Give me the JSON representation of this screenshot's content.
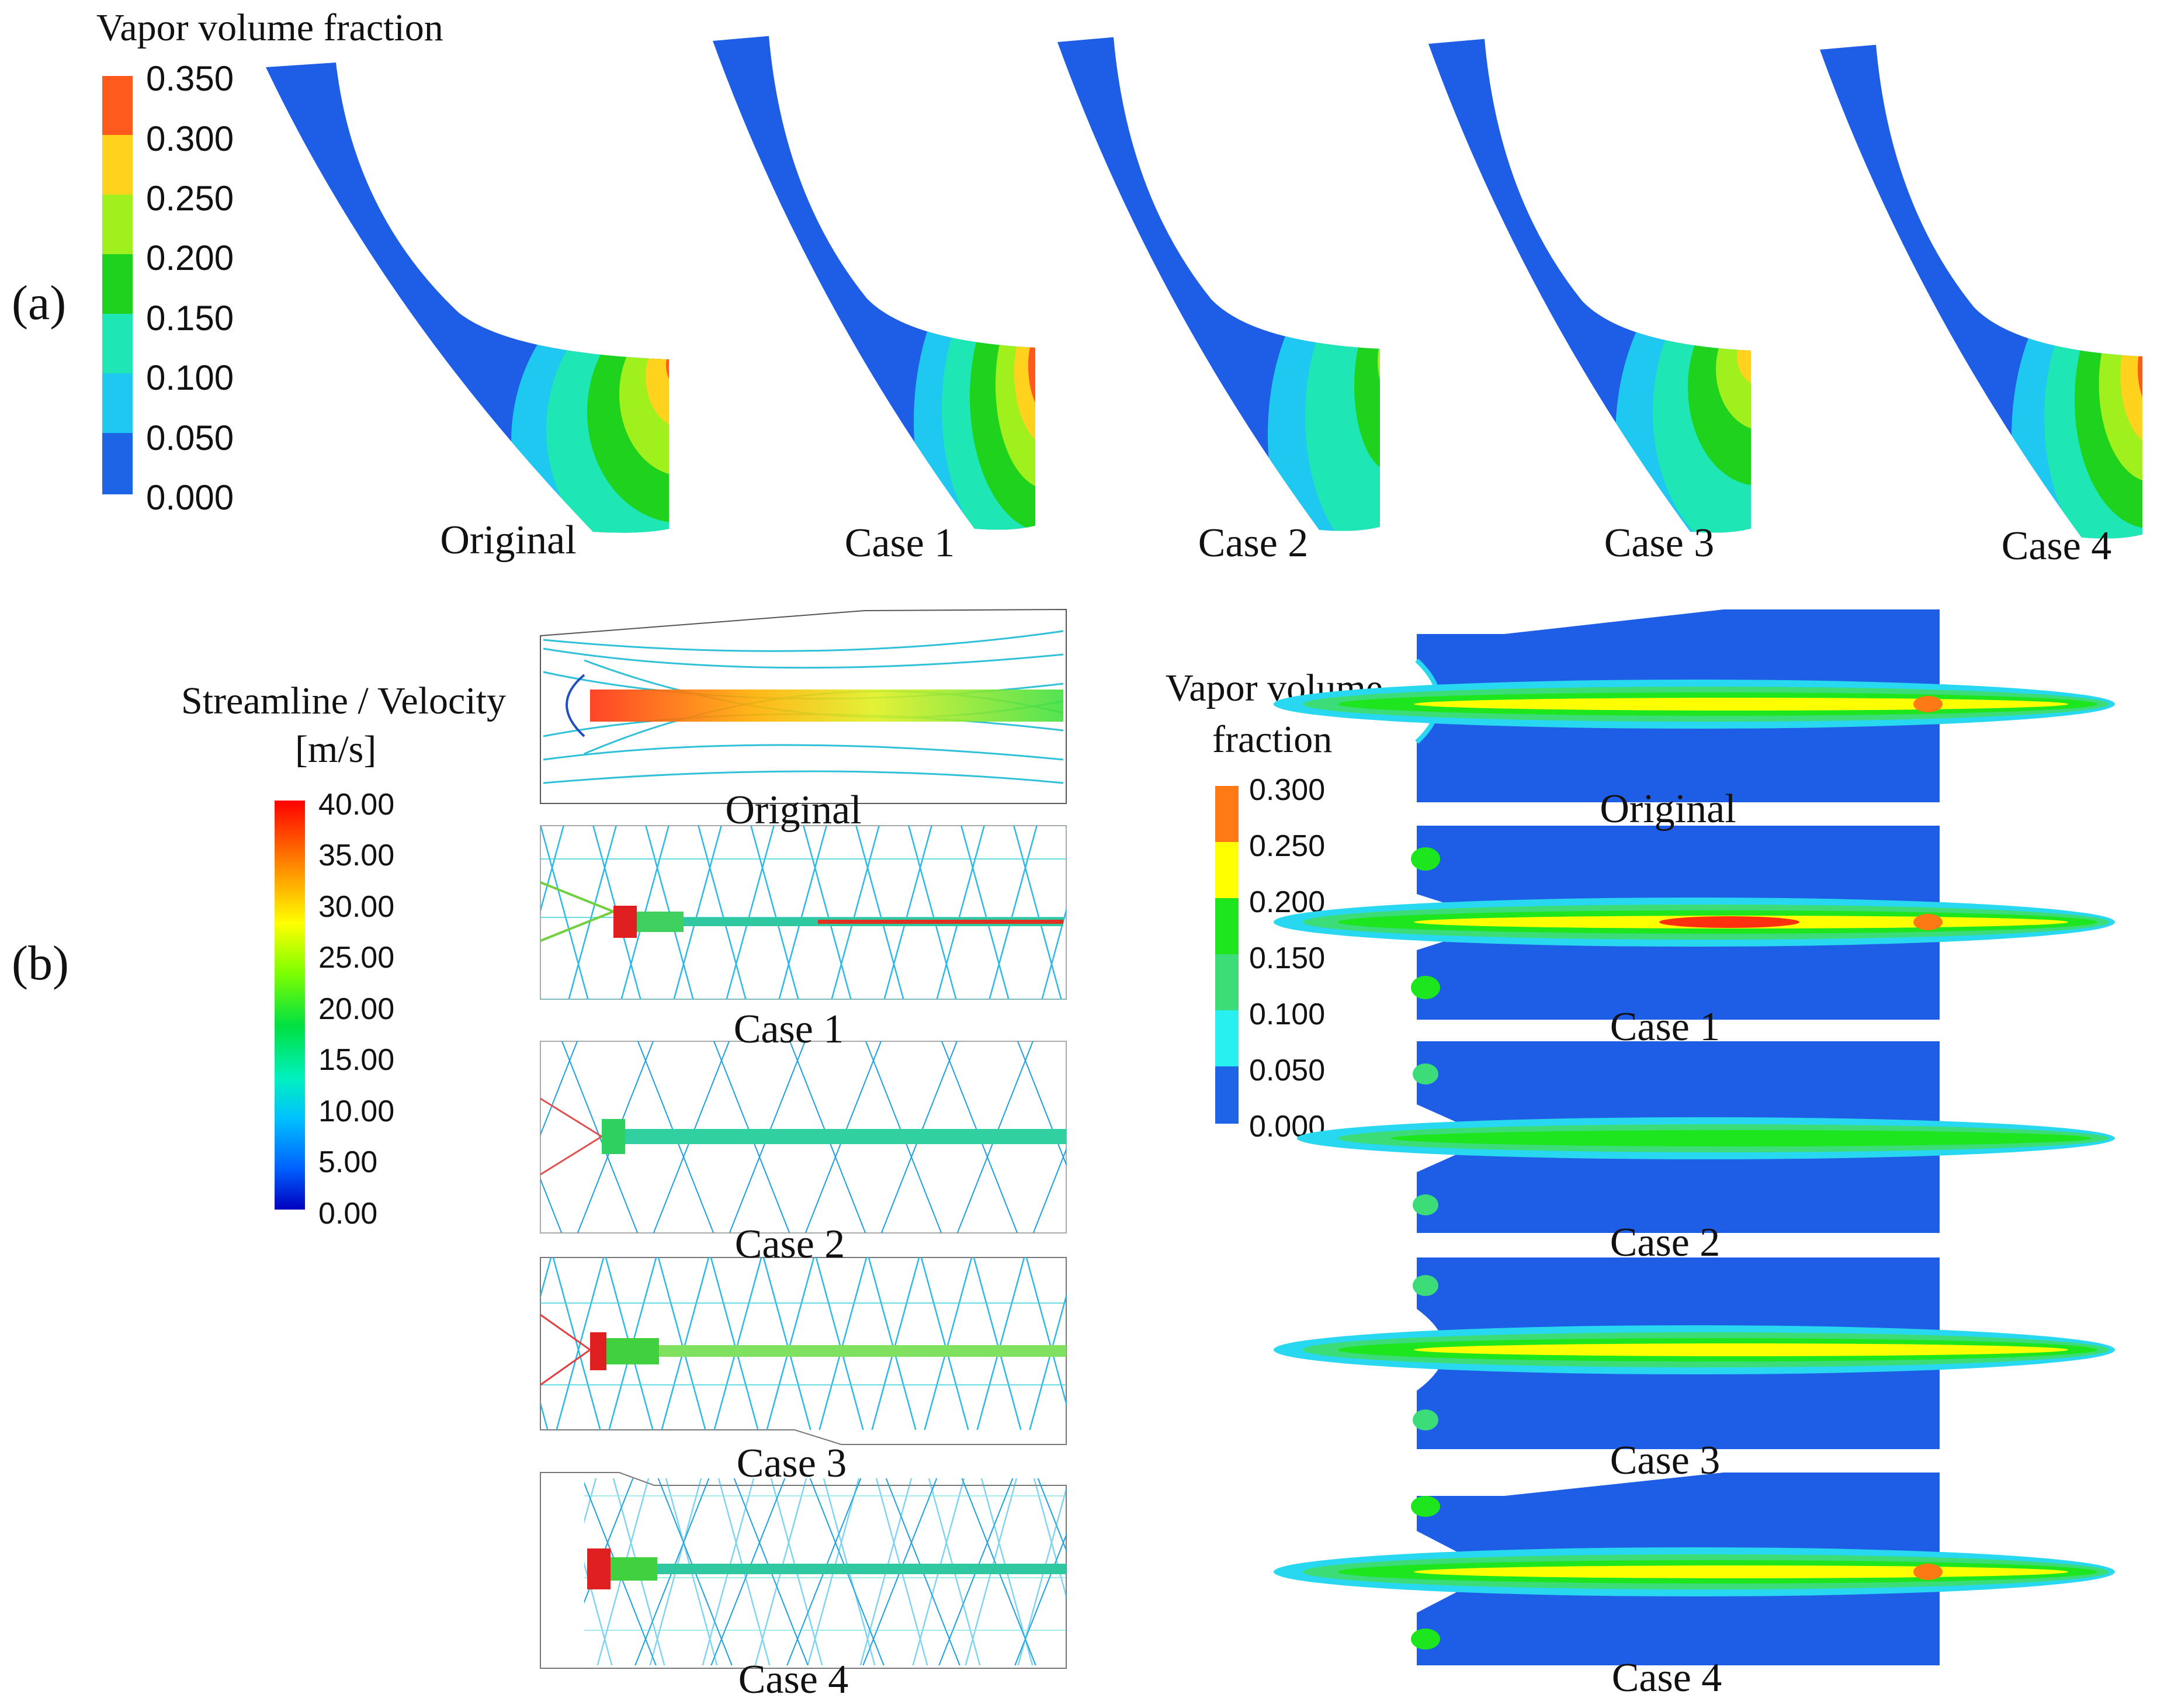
{
  "panel_a": {
    "label": "(a)",
    "legend": {
      "title": "Vapor volume fraction",
      "ticks": [
        "0.350",
        "0.300",
        "0.250",
        "0.200",
        "0.150",
        "0.100",
        "0.050",
        "0.000"
      ],
      "colors": [
        "#ff5a1e",
        "#ffd21e",
        "#a0f01e",
        "#1ed21e",
        "#1ee6b4",
        "#1ec8f0",
        "#1e64e6"
      ]
    },
    "blades": [
      {
        "caption": "Original",
        "peak_fraction": 0.33
      },
      {
        "caption": "Case 1",
        "peak_fraction": 0.35
      },
      {
        "caption": "Case 2",
        "peak_fraction": 0.22
      },
      {
        "caption": "Case 3",
        "peak_fraction": 0.3
      },
      {
        "caption": "Case 4",
        "peak_fraction": 0.34
      }
    ]
  },
  "panel_b": {
    "label": "(b)",
    "velocity_legend": {
      "title_line1": "Streamline / Velocity",
      "title_line2": "[m/s]",
      "ticks": [
        "40.00",
        "35.00",
        "30.00",
        "25.00",
        "20.00",
        "15.00",
        "10.00",
        "5.00",
        "0.00"
      ]
    },
    "vapor_legend": {
      "title_line1": "Vapor volume",
      "title_line2": "fraction",
      "ticks": [
        "0.300",
        "0.250",
        "0.200",
        "0.150",
        "0.100",
        "0.050",
        "0.000"
      ],
      "colors": [
        "#ff7a14",
        "#ffff00",
        "#1ee61e",
        "#3cdc78",
        "#28f0f0",
        "#1e64e6"
      ]
    },
    "streamline_cases": [
      "Original",
      "Case 1",
      "Case 2",
      "Case 3",
      "Case 4"
    ],
    "vapor_cases": [
      "Original",
      "Case 1",
      "Case 2",
      "Case 3",
      "Case 4"
    ]
  }
}
